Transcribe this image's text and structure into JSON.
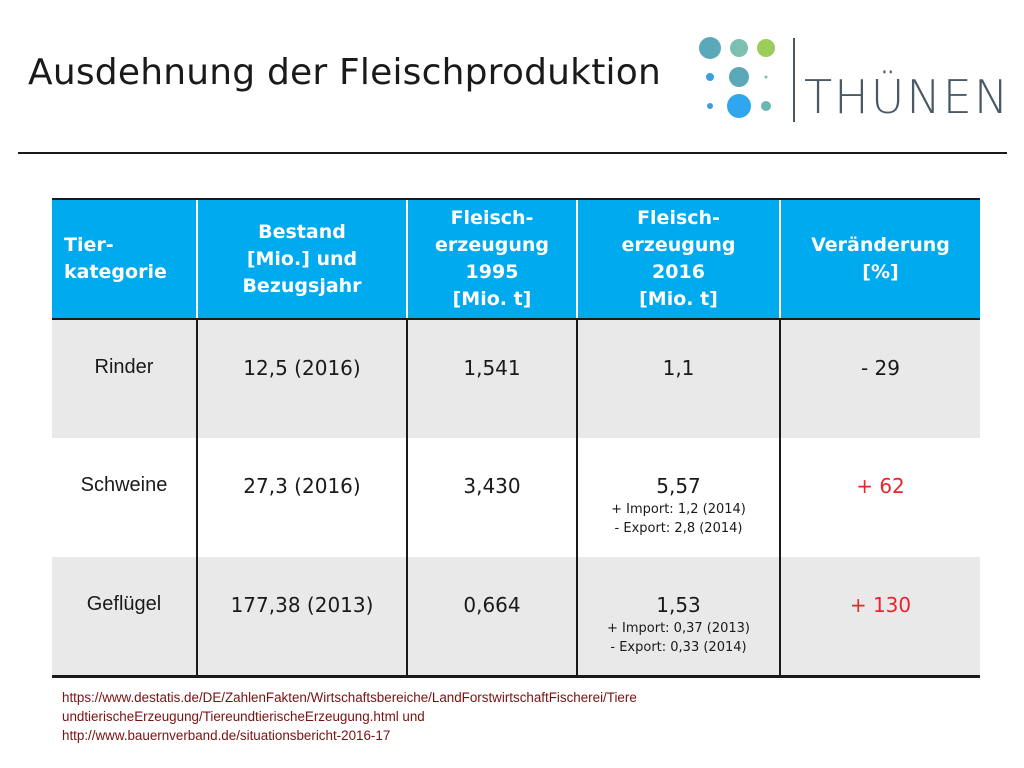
{
  "slide": {
    "title": "Ausdehnung der Fleischproduktion"
  },
  "logo": {
    "wordmark": "THÜNEN",
    "dot_colors": [
      "#5ba8b8",
      "#7cc0b0",
      "#9ccc5a",
      "#3a9ee0",
      "#5ba8b8",
      "#7cc0b0",
      "#3a9ee0",
      "#2fa6ee",
      "#6ab8b0"
    ]
  },
  "table": {
    "headers": [
      "Tier-\nkategorie",
      "Bestand\n[Mio.] und\nBezugsjahr",
      "Fleisch-\nerzeugung\n1995\n[Mio. t]",
      "Fleisch-\nerzeugung\n2016\n[Mio. t]",
      "Veränderung\n[%]"
    ],
    "header_color": "#00aaee",
    "rows": [
      {
        "category": "Rinder",
        "bestand": "12,5 (2016)",
        "prod_1995": "1,541",
        "prod_2016": "1,1",
        "prod_2016_import": "",
        "prod_2016_export": "",
        "change": "- 29",
        "change_color": "#1a1a1a"
      },
      {
        "category": "Schweine",
        "bestand": "27,3 (2016)",
        "prod_1995": "3,430",
        "prod_2016": "5,57",
        "prod_2016_import": "+ Import: 1,2 (2014)",
        "prod_2016_export": "-  Export: 2,8 (2014)",
        "change": "+ 62",
        "change_color": "#e8262b"
      },
      {
        "category": "Geflügel",
        "bestand": "177,38 (2013)",
        "prod_1995": "0,664",
        "prod_2016": "1,53",
        "prod_2016_import": "+ Import: 0,37 (2013)",
        "prod_2016_export": "-  Export: 0,33 (2014)",
        "change": "+ 130",
        "change_color": "#e8262b"
      }
    ]
  },
  "sources": {
    "line1": "https://www.destatis.de/DE/ZahlenFakten/Wirtschaftsbereiche/LandForstwirtschaftFischerei/Tiere",
    "line2": "undtierischeErzeugung/TiereundtierischeErzeugung.html und",
    "line3": "http://www.bauernverband.de/situationsbericht-2016-17"
  }
}
